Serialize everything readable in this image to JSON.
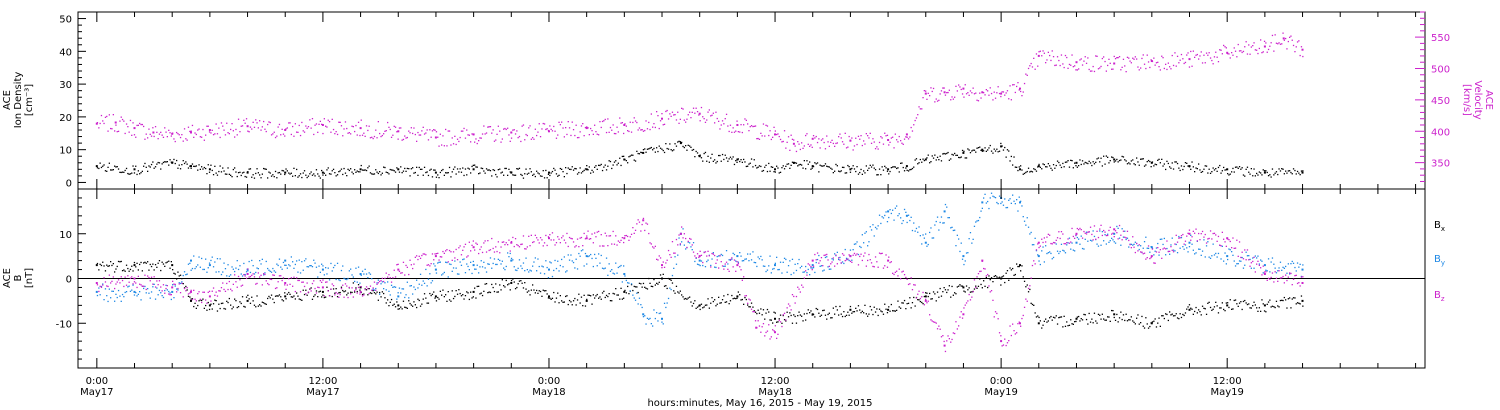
{
  "chart_data": [
    {
      "type": "scatter",
      "panel": "top",
      "xlabel": "hours:minutes, May 16, 2015 - May 19, 2015",
      "x_ticks": [
        {
          "hour": 0,
          "time": "0:00",
          "date": "May17"
        },
        {
          "hour": 12,
          "time": "12:00",
          "date": "May17"
        },
        {
          "hour": 24,
          "time": "0:00",
          "date": "May18"
        },
        {
          "hour": 36,
          "time": "12:00",
          "date": "May18"
        },
        {
          "hour": 48,
          "time": "0:00",
          "date": "May19"
        },
        {
          "hour": 60,
          "time": "12:00",
          "date": "May19"
        }
      ],
      "xlim_hours_from_May17_0000": [
        -1.0,
        70.5
      ],
      "grid": false,
      "left_axis": {
        "label_lines": [
          "ACE",
          "Ion Density",
          "[cm⁻³]"
        ],
        "ylim": [
          -2,
          52
        ],
        "ticks": [
          0,
          10,
          20,
          30,
          40,
          50
        ],
        "color": "#000000"
      },
      "right_axis": {
        "label_lines": [
          "ACE",
          "Velocity",
          "[km/s]"
        ],
        "ylim": [
          308,
          590
        ],
        "ticks": [
          350,
          400,
          450,
          500,
          550
        ],
        "color": "#cc22cc"
      },
      "series": [
        {
          "axis": "left",
          "color": "#000000",
          "hours": [
            0,
            2,
            4,
            5,
            6,
            8,
            10,
            12,
            14,
            16,
            18,
            20,
            22,
            24,
            26,
            28,
            29,
            31,
            32,
            34,
            36,
            37,
            38,
            40,
            42,
            43,
            44,
            46,
            47,
            48,
            49,
            50,
            52,
            54,
            56,
            58,
            60,
            62,
            64
          ],
          "values": [
            5,
            4,
            6,
            5,
            4,
            3,
            3,
            3,
            4,
            4,
            3,
            4,
            3,
            3,
            4,
            7,
            9,
            12,
            8,
            7,
            4,
            6,
            5,
            4,
            4,
            5,
            7,
            9,
            10,
            11,
            4,
            5,
            6,
            7,
            6,
            5,
            4,
            3,
            3
          ]
        },
        {
          "axis": "right",
          "color": "#cc22cc",
          "hours": [
            0,
            1,
            2,
            3,
            4,
            5,
            6,
            8,
            10,
            12,
            14,
            16,
            18,
            20,
            22,
            24,
            26,
            28,
            30,
            32,
            34,
            36,
            37,
            38,
            40,
            42,
            43,
            44,
            45,
            46,
            47,
            48,
            49,
            50,
            52,
            54,
            56,
            58,
            60,
            62,
            63,
            64
          ],
          "values": [
            412,
            414,
            405,
            398,
            396,
            398,
            402,
            408,
            402,
            410,
            405,
            400,
            390,
            395,
            398,
            400,
            405,
            410,
            420,
            428,
            410,
            395,
            380,
            388,
            385,
            386,
            395,
            460,
            462,
            468,
            462,
            460,
            468,
            520,
            510,
            508,
            512,
            515,
            525,
            535,
            548,
            530
          ]
        }
      ]
    },
    {
      "type": "scatter",
      "panel": "bottom",
      "xlabel": "hours:minutes, May 16, 2015 - May 19, 2015",
      "xlim_hours_from_May17_0000": [
        -1.0,
        70.5
      ],
      "grid": false,
      "zero_line": true,
      "left_axis": {
        "label_lines": [
          "ACE",
          "B",
          "[nT]"
        ],
        "ylim": [
          -20,
          20
        ],
        "ticks": [
          -10,
          0,
          10
        ],
        "color": "#000000"
      },
      "legend_position": "right",
      "series": [
        {
          "name": "Bx",
          "label_main": "B",
          "label_sub": "x",
          "color": "#000000",
          "hours": [
            0,
            2,
            4,
            5,
            6,
            8,
            10,
            12,
            14,
            16,
            18,
            20,
            22,
            24,
            26,
            28,
            30,
            32,
            34,
            36,
            38,
            40,
            42,
            44,
            46,
            48,
            49,
            50,
            52,
            54,
            56,
            58,
            60,
            62,
            64
          ],
          "values": [
            3,
            3,
            3,
            -5,
            -6,
            -5,
            -4,
            -3,
            -2,
            -6,
            -4,
            -3,
            -1,
            -4,
            -5,
            -3,
            0,
            -6,
            -4,
            -9,
            -8,
            -7,
            -7,
            -4,
            -2,
            0,
            3,
            -10,
            -9,
            -8,
            -10,
            -7,
            -6,
            -6,
            -5
          ]
        },
        {
          "name": "By",
          "label_main": "B",
          "label_sub": "y",
          "color": "#1e88e5",
          "hours": [
            0,
            2,
            4,
            5,
            6,
            8,
            10,
            12,
            14,
            16,
            18,
            20,
            22,
            24,
            26,
            28,
            29,
            30,
            31,
            32,
            34,
            36,
            38,
            40,
            42,
            43,
            44,
            45,
            46,
            47,
            48,
            49,
            50,
            52,
            54,
            56,
            58,
            60,
            62,
            64
          ],
          "values": [
            -3,
            -3,
            -3,
            4,
            3,
            2,
            4,
            2,
            1,
            -4,
            2,
            3,
            4,
            2,
            5,
            1,
            -8,
            -9,
            10,
            4,
            5,
            3,
            3,
            5,
            15,
            14,
            8,
            15,
            5,
            17,
            18,
            17,
            5,
            8,
            10,
            7,
            8,
            5,
            3,
            2
          ]
        },
        {
          "name": "Bz",
          "label_main": "B",
          "label_sub": "z",
          "color": "#cc22cc",
          "hours": [
            0,
            2,
            4,
            5,
            6,
            8,
            10,
            12,
            14,
            16,
            18,
            20,
            22,
            24,
            26,
            28,
            29,
            30,
            31,
            32,
            34,
            35,
            36,
            38,
            40,
            42,
            44,
            45,
            46,
            47,
            48,
            49,
            50,
            52,
            54,
            56,
            58,
            60,
            62,
            64
          ],
          "values": [
            -1,
            0,
            -2,
            -3,
            -4,
            1,
            -1,
            -2,
            -3,
            2,
            5,
            7,
            8,
            9,
            9,
            9,
            13,
            3,
            10,
            5,
            3,
            -11,
            -12,
            4,
            5,
            4,
            -5,
            -15,
            -8,
            4,
            -14,
            -10,
            8,
            10,
            11,
            5,
            10,
            9,
            1,
            -1
          ]
        }
      ]
    }
  ]
}
